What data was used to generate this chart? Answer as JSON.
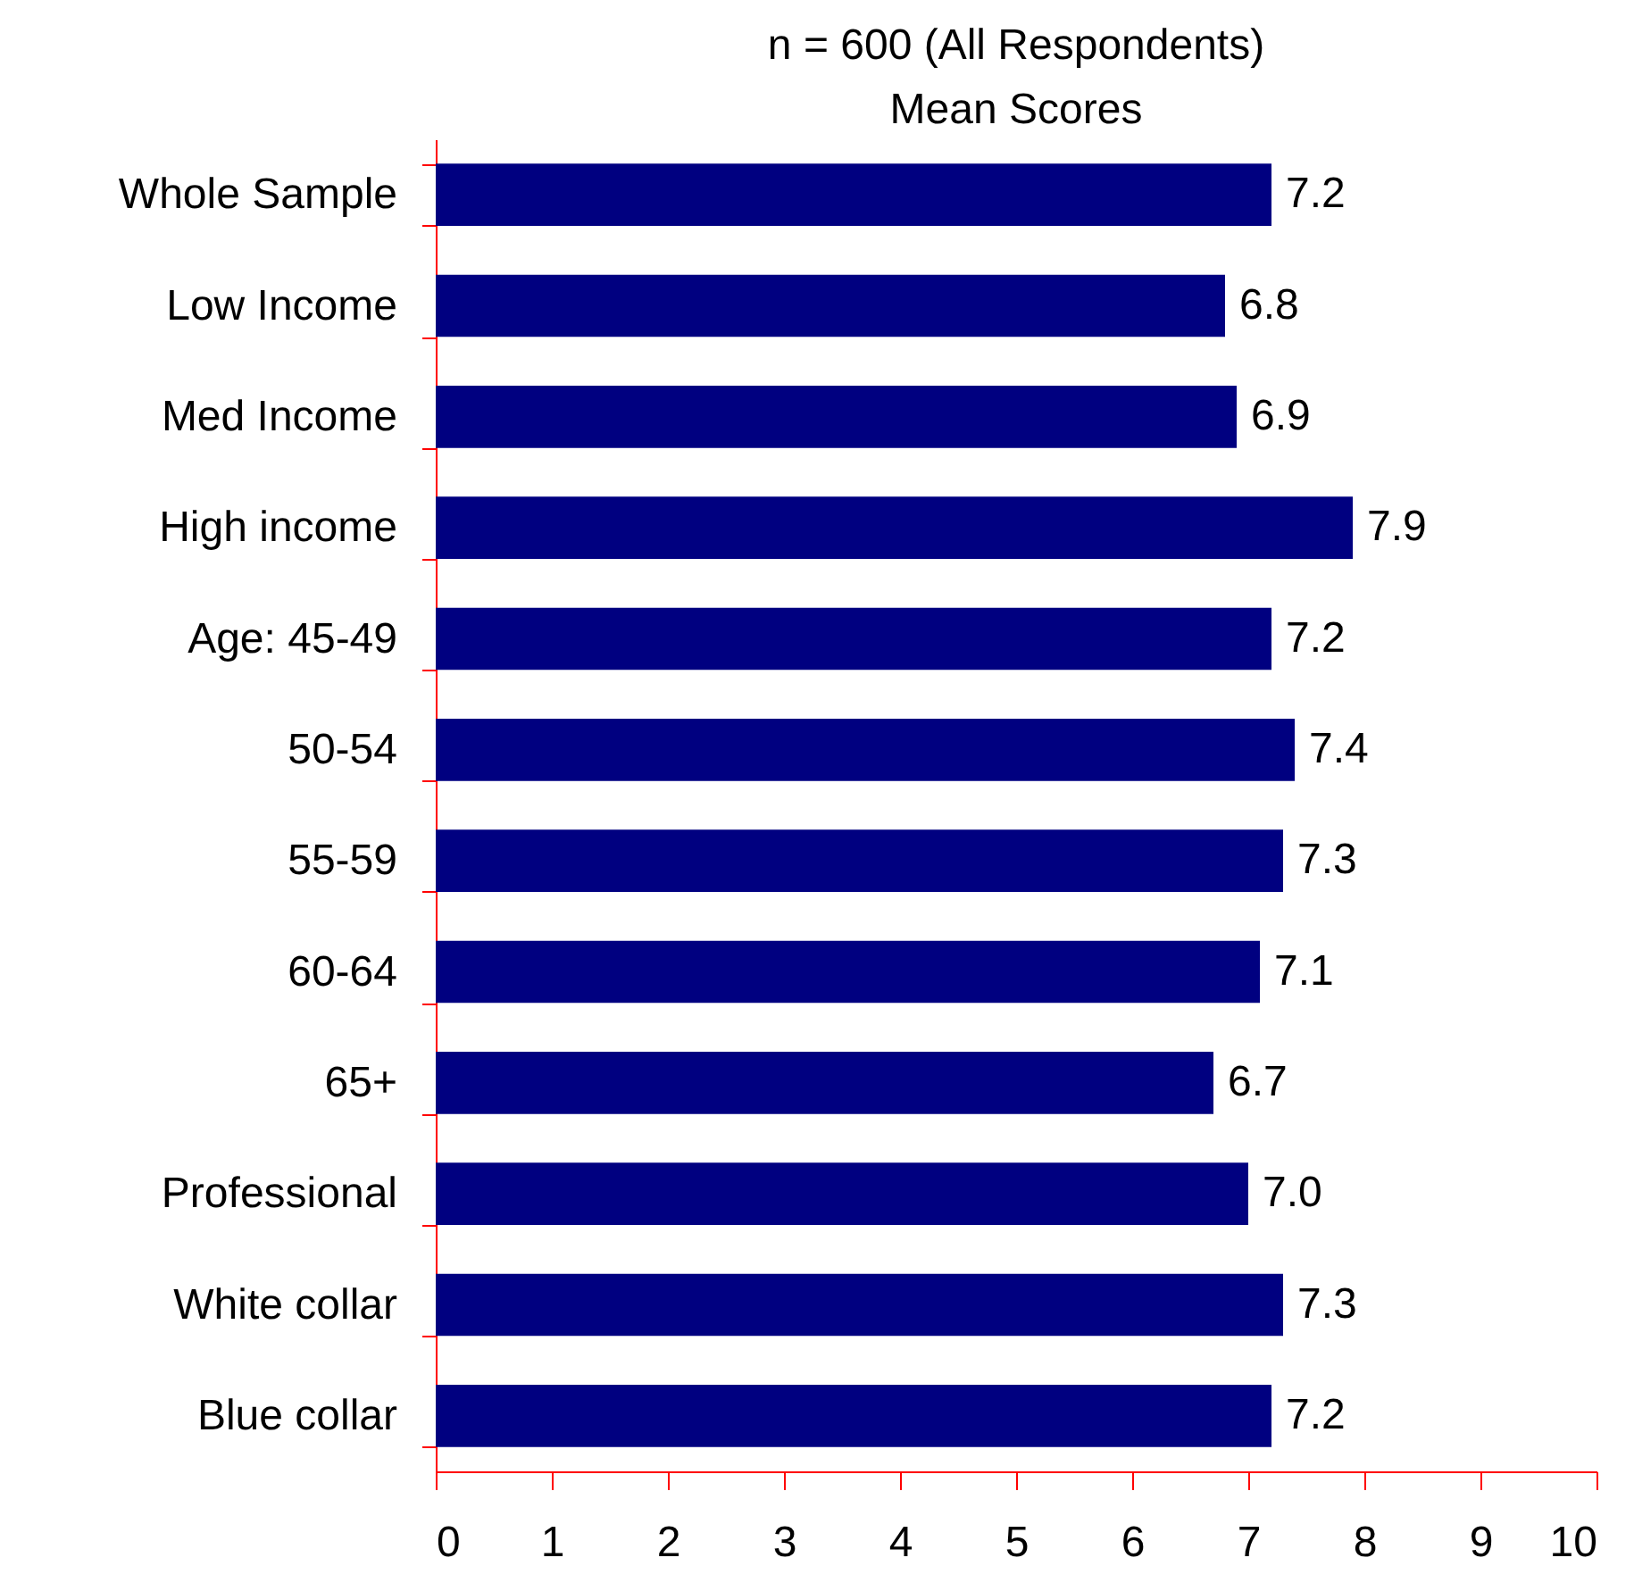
{
  "chart_data": {
    "type": "bar",
    "orientation": "horizontal",
    "title": "n = 600 (All Respondents)",
    "subtitle": "Mean Scores",
    "categories": [
      "Whole Sample",
      "Low Income",
      "Med Income",
      "High income",
      "Age: 45-49",
      "50-54",
      "55-59",
      "60-64",
      "65+",
      "Professional",
      "White collar",
      "Blue collar"
    ],
    "values": [
      7.2,
      6.8,
      6.9,
      7.9,
      7.2,
      7.4,
      7.3,
      7.1,
      6.7,
      7.0,
      7.3,
      7.2
    ],
    "value_labels": [
      "7.2",
      "6.8",
      "6.9",
      "7.9",
      "7.2",
      "7.4",
      "7.3",
      "7.1",
      "6.7",
      "7.0",
      "7.3",
      "7.2"
    ],
    "color": "#000080",
    "xlim": [
      0,
      10
    ],
    "xticks": [
      0,
      1,
      2,
      3,
      4,
      5,
      6,
      7,
      8,
      9,
      10
    ]
  }
}
